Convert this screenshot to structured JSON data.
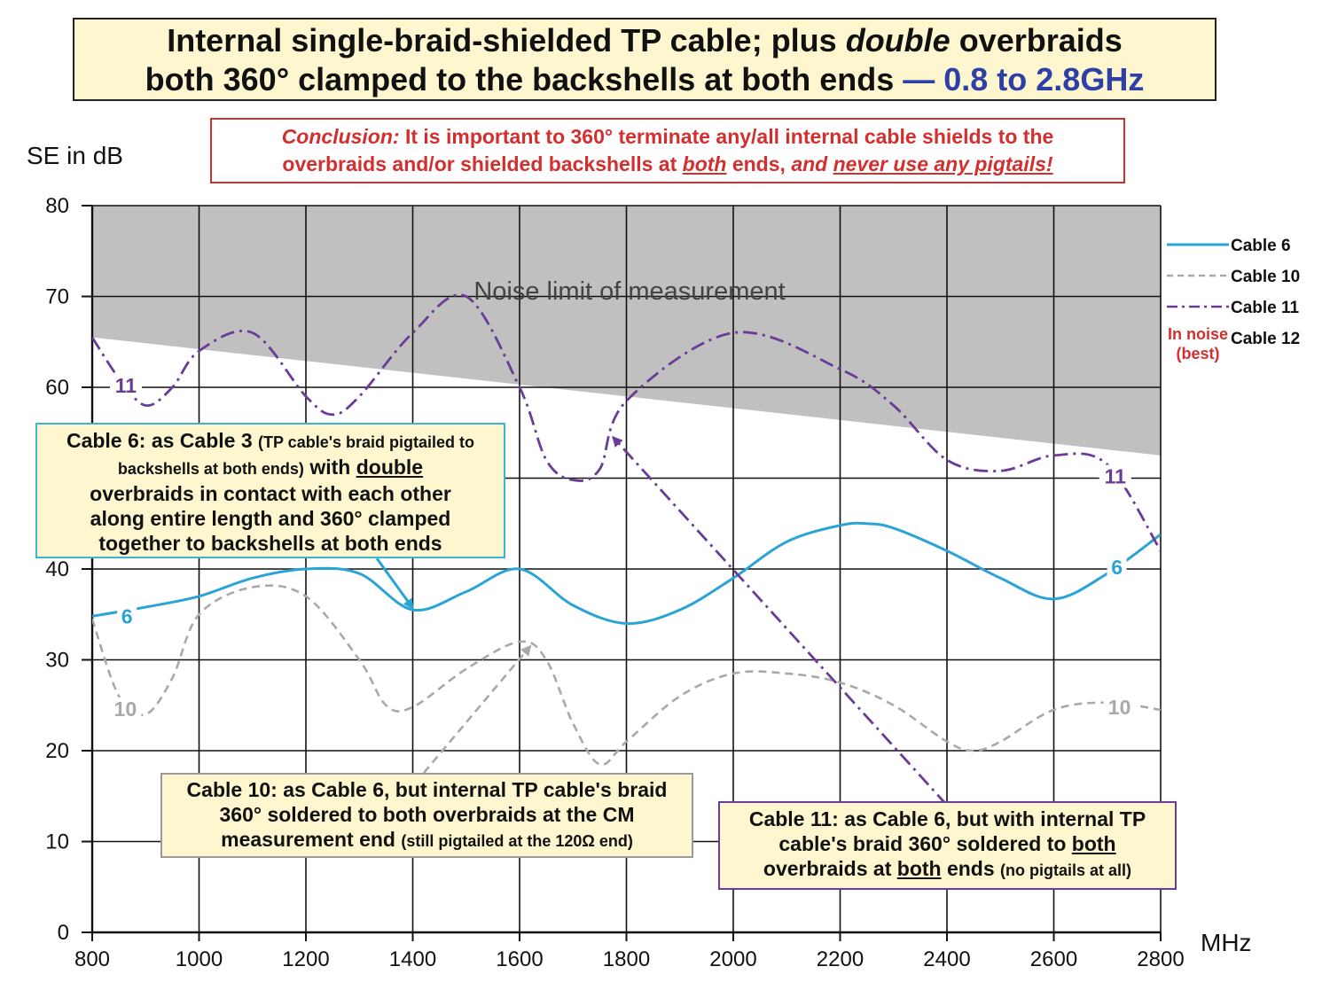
{
  "title": {
    "line1_pre": "Internal single-braid-shielded TP cable; plus ",
    "line1_em": "double",
    "line1_post": " overbraids",
    "line2": "both 360° clamped to the backshells at both ends ",
    "line2_blue": "— 0.8 to 2.8GHz"
  },
  "conclusion": {
    "lead": "Conclusion:",
    "text1": " It is important to 360° terminate any/all internal cable shields to the",
    "text2": "overbraids and/or shielded backshells at ",
    "both": "both",
    "text3": " ends, ",
    "and_never": "and ",
    "never_use": "never use any pigtails!"
  },
  "noise_label": "Noise limit of measurement",
  "annotations": {
    "cable6": {
      "l1a": "Cable 6: as Cable 3 ",
      "l1b": "(TP cable's braid pigtailed to",
      "l2a": "backshells at both ends)",
      "l2b": " with ",
      "l2c": "double",
      "l3": "overbraids in contact with each other",
      "l4": "along entire length and 360° clamped",
      "l5": "together to backshells at both ends"
    },
    "cable10": {
      "l1": "Cable 10: as Cable 6, but internal TP cable's braid",
      "l2": "360° soldered to both overbraids at the CM",
      "l3a": "measurement end ",
      "l3b": "(still pigtailed at the 120Ω end)"
    },
    "cable11": {
      "l1": "Cable 11: as Cable 6, but with internal TP",
      "l2a": "cable's braid 360° soldered to ",
      "l2b": "both",
      "l3a": "overbraids at ",
      "l3b": "both",
      "l3c": " ends ",
      "l3d": "(no pigtails at all)"
    }
  },
  "legend": {
    "cable6": "Cable 6",
    "cable10": "Cable 10",
    "cable11": "Cable 11",
    "cable12": "Cable 12",
    "in_noise": "In noise",
    "best": "(best)"
  },
  "colors": {
    "cable6": "#2aa4d5",
    "cable10": "#a9a9a9",
    "cable11": "#6a3c97",
    "noise": "#c0c0c0",
    "title_bg": "#fdf6cf",
    "title_blue": "#2e3fa6",
    "conclusion_red": "#d32f2f"
  },
  "chart_data": {
    "type": "line",
    "title": "Internal single-braid-shielded TP cable; plus double overbraids both 360° clamped to the backshells at both ends — 0.8 to 2.8GHz",
    "xlabel": "MHz",
    "ylabel": "SE in dB",
    "xlim": [
      800,
      2800
    ],
    "ylim": [
      0,
      80
    ],
    "xticks": [
      800,
      1000,
      1200,
      1400,
      1600,
      1800,
      2000,
      2200,
      2400,
      2600,
      2800
    ],
    "yticks": [
      0,
      10,
      20,
      30,
      40,
      50,
      60,
      70,
      80
    ],
    "grid": true,
    "noise_floor": {
      "x": [
        800,
        2800
      ],
      "y": [
        65.5,
        52.5
      ],
      "top": 80,
      "label": "Noise limit of measurement"
    },
    "series": [
      {
        "name": "Cable 6",
        "label": "6",
        "style": "solid",
        "x": [
          800,
          900,
          1000,
          1100,
          1200,
          1300,
          1400,
          1500,
          1600,
          1700,
          1800,
          1900,
          2000,
          2100,
          2200,
          2250,
          2300,
          2400,
          2500,
          2600,
          2700,
          2800
        ],
        "y": [
          34.8,
          35.8,
          37,
          39,
          40,
          39.5,
          35.5,
          37.5,
          40,
          36,
          34,
          35.5,
          39,
          43,
          44.8,
          45,
          44.5,
          42,
          39,
          36.7,
          39.5,
          43.8
        ]
      },
      {
        "name": "Cable 10",
        "label": "10",
        "style": "dashed",
        "x": [
          800,
          850,
          900,
          950,
          1000,
          1100,
          1200,
          1300,
          1350,
          1400,
          1500,
          1600,
          1650,
          1700,
          1750,
          1800,
          1900,
          2000,
          2100,
          2200,
          2300,
          2400,
          2450,
          2500,
          2600,
          2700,
          2800
        ],
        "y": [
          34.5,
          26,
          24,
          28,
          35,
          38,
          37,
          30,
          25,
          24.8,
          29,
          32,
          30,
          23,
          18.5,
          21,
          26,
          28.5,
          28.5,
          27.5,
          25,
          21,
          20,
          21,
          24.5,
          25.3,
          24.5
        ]
      },
      {
        "name": "Cable 11",
        "label": "11",
        "style": "dash-dot",
        "x": [
          800,
          850,
          900,
          950,
          1000,
          1100,
          1200,
          1250,
          1300,
          1400,
          1500,
          1600,
          1650,
          1700,
          1750,
          1800,
          2000,
          2200,
          2300,
          2400,
          2500,
          2600,
          2700,
          2800
        ],
        "y": [
          65.5,
          61,
          58,
          60,
          64,
          66,
          59,
          57,
          59,
          66,
          70,
          60,
          52,
          49.8,
          51,
          58.5,
          66,
          62,
          58,
          52,
          50.8,
          52.5,
          51.5,
          42
        ]
      },
      {
        "name": "Cable 12",
        "label": "In noise (best)",
        "style": "none",
        "x": [],
        "y": []
      }
    ],
    "series_labels": [
      {
        "series": "Cable 6",
        "text": "6",
        "x": 865,
        "y": 34.8
      },
      {
        "series": "Cable 6",
        "text": "6",
        "x": 2718,
        "y": 40.2
      },
      {
        "series": "Cable 10",
        "text": "10",
        "x": 862,
        "y": 24.6
      },
      {
        "series": "Cable 10",
        "text": "10",
        "x": 2723,
        "y": 24.8
      },
      {
        "series": "Cable 11",
        "text": "11",
        "x": 863,
        "y": 60.2
      },
      {
        "series": "Cable 11",
        "text": "11",
        "x": 2715,
        "y": 50.2
      }
    ]
  }
}
